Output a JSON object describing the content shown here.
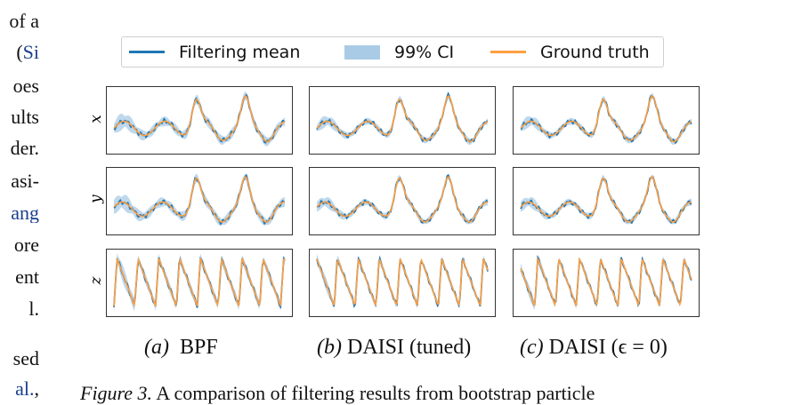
{
  "left_text": {
    "lines": [
      {
        "text": "of a",
        "link": ""
      },
      {
        "text": "(",
        "link": "Si"
      },
      {
        "text": "oes",
        "link": ""
      },
      {
        "text": "ults",
        "link": ""
      },
      {
        "text": "der.",
        "link": ""
      },
      {
        "text": "asi-",
        "link": ""
      },
      {
        "text": "",
        "link": "ang"
      },
      {
        "text": "ore",
        "link": ""
      },
      {
        "text": "ent",
        "link": ""
      },
      {
        "text": "l.",
        "link": ""
      }
    ],
    "lower_lines": [
      {
        "text": "sed",
        "link": ""
      },
      {
        "text": ",",
        "link": "al."
      }
    ]
  },
  "legend": {
    "mean": "Filtering mean",
    "ci": "99% CI",
    "truth": "Ground truth"
  },
  "colors": {
    "mean": "#1f77b4",
    "ci": "#a9cbe6",
    "truth": "#ff9f40"
  },
  "row_labels": [
    "x",
    "y",
    "z"
  ],
  "subfigures": [
    {
      "letter": "(a)",
      "name": "BPF"
    },
    {
      "letter": "(b)",
      "name": "DAISI (tuned)"
    },
    {
      "letter": "(c)",
      "name": "DAISI (ϵ = 0)"
    }
  ],
  "caption": {
    "label": "Figure 3.",
    "text": "A comparison of filtering results from bootstrap particle"
  },
  "chart_data": {
    "type": "line",
    "grid": false,
    "legend_position": "top",
    "series_names": [
      "Filtering mean",
      "99% CI",
      "Ground truth"
    ],
    "rows": [
      "x",
      "y",
      "z"
    ],
    "columns": [
      "BPF",
      "DAISI (tuned)",
      "DAISI (ϵ = 0)"
    ]
  }
}
